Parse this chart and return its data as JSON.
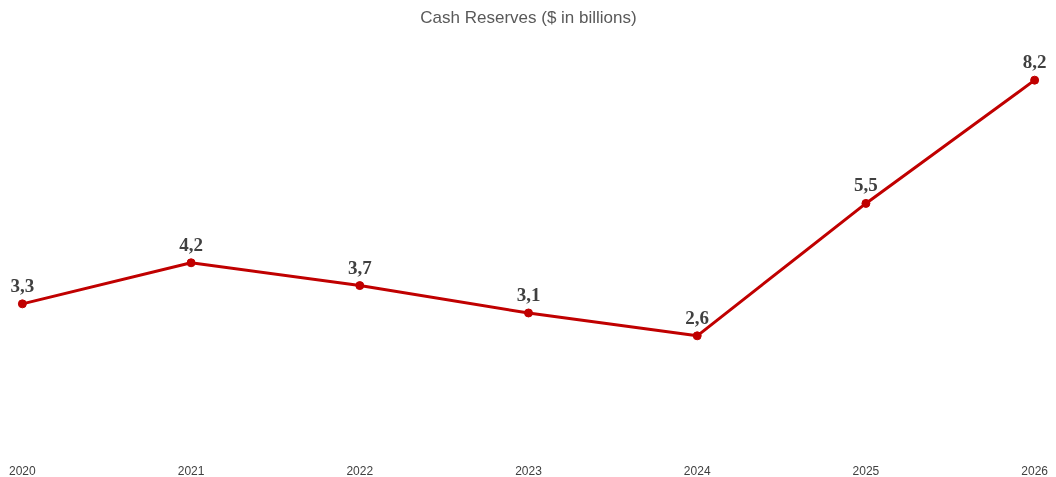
{
  "chart_data": {
    "type": "line",
    "title": "Cash Reserves ($ in billions)",
    "categories": [
      "2020",
      "2021",
      "2022",
      "2023",
      "2024",
      "2025",
      "2026"
    ],
    "series": [
      {
        "color": "#c00000",
        "values": [
          3.3,
          4.2,
          3.7,
          3.1,
          2.6,
          5.5,
          8.2
        ],
        "value_labels": [
          "3,3",
          "4,2",
          "3,7",
          "3,1",
          "2,6",
          "5,5",
          "8,2"
        ]
      }
    ],
    "marker": "circle",
    "line_style": "solid",
    "grid": false,
    "tick_labels": "x"
  }
}
